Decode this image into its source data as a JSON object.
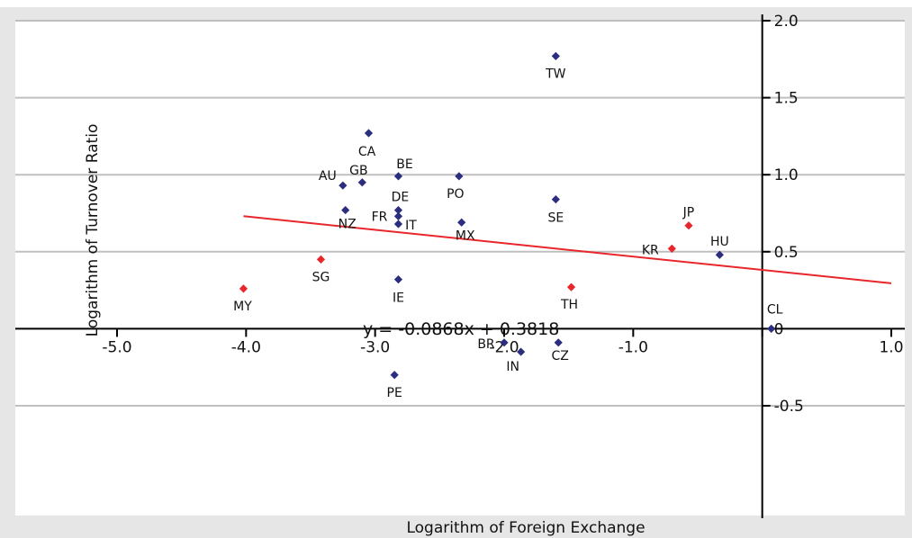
{
  "chart_data": {
    "type": "scatter",
    "title": "",
    "xlabel": "Logarithm of Foreign Exchange",
    "ylabel": "Logarithm of Turnover Ratio",
    "xlim": [
      -5.0,
      1.0
    ],
    "ylim": [
      -0.5,
      2.0
    ],
    "x_ticks": [
      {
        "value": -5.0,
        "label": "-5.0"
      },
      {
        "value": -4.0,
        "label": "-4.0"
      },
      {
        "value": -3.0,
        "label": "-3.0"
      },
      {
        "value": -2.0,
        "label": "-2.0"
      },
      {
        "value": -1.0,
        "label": "-1.0"
      },
      {
        "value": 0.0,
        "label": "0"
      },
      {
        "value": 1.0,
        "label": "1.0"
      }
    ],
    "y_ticks": [
      {
        "value": 2.0,
        "label": "2.0"
      },
      {
        "value": 1.5,
        "label": "1.5"
      },
      {
        "value": 1.0,
        "label": "1.0"
      },
      {
        "value": 0.5,
        "label": "0.5"
      },
      {
        "value": 0.0,
        "label": "0"
      },
      {
        "value": -0.5,
        "label": "-0.5"
      }
    ],
    "grid": "horizontal",
    "colors": {
      "point_default": "#2b2d7f",
      "point_highlight": "#e8262b",
      "trendline": "#e8262b",
      "gridline": "#bfbfbf",
      "plot_background": "#ffffff",
      "figure_background": "#e6e6e6"
    },
    "points": [
      {
        "label": "TW",
        "x": -1.6,
        "y": 1.77,
        "group": "default"
      },
      {
        "label": "CA",
        "x": -3.05,
        "y": 1.27,
        "group": "default"
      },
      {
        "label": "BE",
        "x": -2.82,
        "y": 0.99,
        "group": "default"
      },
      {
        "label": "GB",
        "x": -3.1,
        "y": 0.95,
        "group": "default"
      },
      {
        "label": "AU",
        "x": -3.25,
        "y": 0.93,
        "group": "default"
      },
      {
        "label": "PO",
        "x": -2.35,
        "y": 0.99,
        "group": "default"
      },
      {
        "label": "SE",
        "x": -1.6,
        "y": 0.84,
        "group": "default"
      },
      {
        "label": "DE",
        "x": -2.82,
        "y": 0.77,
        "group": "default"
      },
      {
        "label": "FR",
        "x": -2.82,
        "y": 0.73,
        "group": "default"
      },
      {
        "label": "NZ",
        "x": -3.23,
        "y": 0.77,
        "group": "default"
      },
      {
        "label": "IT",
        "x": -2.82,
        "y": 0.68,
        "group": "default"
      },
      {
        "label": "MX",
        "x": -2.33,
        "y": 0.69,
        "group": "default"
      },
      {
        "label": "JP",
        "x": -0.57,
        "y": 0.67,
        "group": "highlight"
      },
      {
        "label": "KR",
        "x": -0.7,
        "y": 0.52,
        "group": "highlight"
      },
      {
        "label": "HU",
        "x": -0.33,
        "y": 0.48,
        "group": "default"
      },
      {
        "label": "SG",
        "x": -3.42,
        "y": 0.45,
        "group": "highlight"
      },
      {
        "label": "IE",
        "x": -2.82,
        "y": 0.32,
        "group": "default"
      },
      {
        "label": "MY",
        "x": -4.02,
        "y": 0.26,
        "group": "highlight"
      },
      {
        "label": "TH",
        "x": -1.48,
        "y": 0.27,
        "group": "highlight"
      },
      {
        "label": "CL",
        "x": 0.07,
        "y": 0.0,
        "group": "default"
      },
      {
        "label": "BR",
        "x": -2.0,
        "y": -0.09,
        "group": "default"
      },
      {
        "label": "IN",
        "x": -1.87,
        "y": -0.15,
        "group": "default"
      },
      {
        "label": "CZ",
        "x": -1.58,
        "y": -0.09,
        "group": "default"
      },
      {
        "label": "PE",
        "x": -2.85,
        "y": -0.3,
        "group": "default"
      }
    ],
    "trendline": {
      "equation": "y = -0.0868x + 0.3818",
      "slope": -0.0868,
      "intercept": 0.3818,
      "x_range": [
        -4.02,
        1.0
      ]
    }
  }
}
